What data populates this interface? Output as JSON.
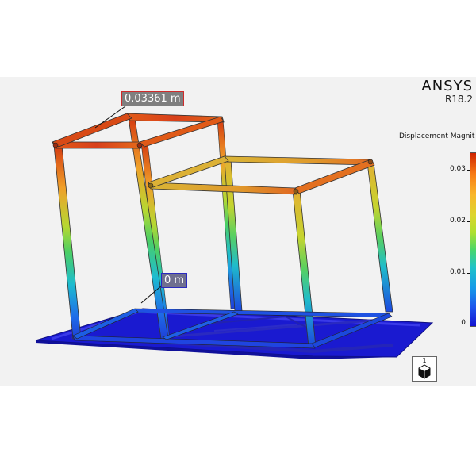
{
  "app": {
    "brand": "ANSYS",
    "version": "R18.2"
  },
  "legend": {
    "title": "Displacement Magnit",
    "ticks": [
      "0.03",
      "0.02",
      "0.01",
      "0"
    ],
    "colors": [
      "#ce2400",
      "#f77a14",
      "#f9b62a",
      "#dcd52d",
      "#aee02f",
      "#49d66b",
      "#1fc3c9",
      "#159ae8",
      "#1c55ec",
      "#1313d0"
    ]
  },
  "probes": {
    "max_label": "0.03361 m",
    "min_label": "0 m"
  },
  "view": {
    "triad_label": "1",
    "triad_icon": "view-cube-icon"
  }
}
